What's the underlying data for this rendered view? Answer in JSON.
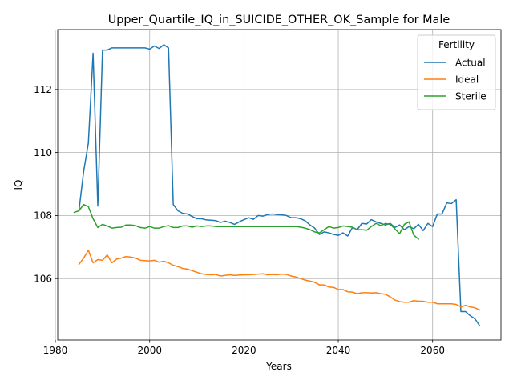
{
  "chart_data": {
    "type": "line",
    "title": "Upper_Quartile_IQ_in_SUICIDE_OTHER_OK_Sample for Male",
    "xlabel": "Years",
    "ylabel": "IQ",
    "xlim": [
      1980.5,
      2074.5
    ],
    "ylim": [
      104.05,
      113.9
    ],
    "xticks": [
      1980,
      2000,
      2020,
      2040,
      2060
    ],
    "yticks": [
      106,
      108,
      110,
      112
    ],
    "grid": true,
    "legend": {
      "title": "Fertility",
      "placement": "top-right"
    },
    "series": [
      {
        "name": "Actual",
        "color": "#1f77b4",
        "x": [
          1985,
          1986,
          1987,
          1988,
          1989,
          1990,
          1991,
          1992,
          1993,
          1994,
          1995,
          1996,
          1997,
          1998,
          1999,
          2000,
          2001,
          2002,
          2003,
          2004,
          2005,
          2006,
          2007,
          2008,
          2009,
          2010,
          2011,
          2012,
          2013,
          2014,
          2015,
          2016,
          2017,
          2018,
          2019,
          2020,
          2021,
          2022,
          2023,
          2024,
          2025,
          2026,
          2027,
          2028,
          2029,
          2030,
          2031,
          2032,
          2033,
          2034,
          2035,
          2036,
          2037,
          2038,
          2039,
          2040,
          2041,
          2042,
          2043,
          2044,
          2045,
          2046,
          2047,
          2048,
          2049,
          2050,
          2051,
          2052,
          2053,
          2054,
          2055,
          2056,
          2057,
          2058,
          2059,
          2060,
          2061,
          2062,
          2063,
          2064,
          2065,
          2066,
          2067,
          2068,
          2069,
          2070
        ],
        "y": [
          108.15,
          109.4,
          110.3,
          113.15,
          108.3,
          113.25,
          113.25,
          113.32,
          113.32,
          113.32,
          113.32,
          113.32,
          113.32,
          113.32,
          113.32,
          113.28,
          113.38,
          113.3,
          113.42,
          113.32,
          108.35,
          108.15,
          108.07,
          108.05,
          107.97,
          107.9,
          107.9,
          107.86,
          107.85,
          107.84,
          107.78,
          107.82,
          107.78,
          107.72,
          107.8,
          107.87,
          107.93,
          107.88,
          108.0,
          107.98,
          108.03,
          108.05,
          108.03,
          108.02,
          108.0,
          107.93,
          107.93,
          107.9,
          107.83,
          107.7,
          107.6,
          107.4,
          107.48,
          107.45,
          107.4,
          107.37,
          107.45,
          107.35,
          107.62,
          107.55,
          107.75,
          107.73,
          107.87,
          107.8,
          107.75,
          107.7,
          107.75,
          107.62,
          107.7,
          107.55,
          107.65,
          107.58,
          107.72,
          107.52,
          107.75,
          107.65,
          108.05,
          108.05,
          108.4,
          108.38,
          108.5,
          104.95,
          104.95,
          104.82,
          104.72,
          104.5
        ]
      },
      {
        "name": "Ideal",
        "color": "#ff7f0e",
        "x": [
          1985,
          1986,
          1987,
          1988,
          1989,
          1990,
          1991,
          1992,
          1993,
          1994,
          1995,
          1996,
          1997,
          1998,
          1999,
          2000,
          2001,
          2002,
          2003,
          2004,
          2005,
          2006,
          2007,
          2008,
          2009,
          2010,
          2011,
          2012,
          2013,
          2014,
          2015,
          2016,
          2017,
          2018,
          2019,
          2020,
          2021,
          2022,
          2023,
          2024,
          2025,
          2026,
          2027,
          2028,
          2029,
          2030,
          2031,
          2032,
          2033,
          2034,
          2035,
          2036,
          2037,
          2038,
          2039,
          2040,
          2041,
          2042,
          2043,
          2044,
          2045,
          2046,
          2047,
          2048,
          2049,
          2050,
          2051,
          2052,
          2053,
          2054,
          2055,
          2056,
          2057,
          2058,
          2059,
          2060,
          2061,
          2062,
          2063,
          2064,
          2065,
          2066,
          2067,
          2068,
          2069,
          2070
        ],
        "y": [
          106.45,
          106.65,
          106.9,
          106.5,
          106.6,
          106.58,
          106.75,
          106.5,
          106.62,
          106.65,
          106.7,
          106.68,
          106.65,
          106.58,
          106.57,
          106.56,
          106.58,
          106.52,
          106.55,
          106.5,
          106.42,
          106.38,
          106.32,
          106.3,
          106.25,
          106.2,
          106.15,
          106.13,
          106.12,
          106.13,
          106.08,
          106.1,
          106.12,
          106.1,
          106.11,
          106.12,
          106.12,
          106.13,
          106.14,
          106.15,
          106.12,
          106.13,
          106.12,
          106.14,
          106.13,
          106.08,
          106.05,
          106.0,
          105.95,
          105.92,
          105.88,
          105.8,
          105.8,
          105.73,
          105.72,
          105.65,
          105.65,
          105.58,
          105.57,
          105.52,
          105.55,
          105.55,
          105.54,
          105.55,
          105.52,
          105.5,
          105.42,
          105.32,
          105.27,
          105.25,
          105.25,
          105.3,
          105.28,
          105.28,
          105.25,
          105.25,
          105.2,
          105.2,
          105.2,
          105.2,
          105.18,
          105.1,
          105.15,
          105.1,
          105.07,
          105.0
        ]
      },
      {
        "name": "Sterile",
        "color": "#2ca02c",
        "x": [
          1984,
          1985,
          1986,
          1987,
          1988,
          1989,
          1990,
          1991,
          1992,
          1993,
          1994,
          1995,
          1996,
          1997,
          1998,
          1999,
          2000,
          2001,
          2002,
          2003,
          2004,
          2005,
          2006,
          2007,
          2008,
          2009,
          2010,
          2011,
          2012,
          2013,
          2014,
          2015,
          2016,
          2017,
          2018,
          2019,
          2020,
          2021,
          2022,
          2023,
          2024,
          2025,
          2026,
          2027,
          2028,
          2029,
          2030,
          2031,
          2032,
          2033,
          2034,
          2035,
          2036,
          2037,
          2038,
          2039,
          2040,
          2041,
          2042,
          2043,
          2044,
          2045,
          2046,
          2047,
          2048,
          2049,
          2050,
          2051,
          2052,
          2053,
          2054,
          2055,
          2056,
          2057
        ],
        "y": [
          108.1,
          108.15,
          108.35,
          108.28,
          107.9,
          107.62,
          107.72,
          107.67,
          107.6,
          107.62,
          107.63,
          107.7,
          107.7,
          107.68,
          107.62,
          107.6,
          107.65,
          107.6,
          107.6,
          107.65,
          107.68,
          107.62,
          107.62,
          107.67,
          107.67,
          107.63,
          107.67,
          107.65,
          107.67,
          107.67,
          107.65,
          107.65,
          107.65,
          107.65,
          107.65,
          107.65,
          107.65,
          107.65,
          107.65,
          107.65,
          107.65,
          107.65,
          107.65,
          107.65,
          107.65,
          107.65,
          107.65,
          107.65,
          107.63,
          107.6,
          107.55,
          107.48,
          107.45,
          107.55,
          107.65,
          107.6,
          107.62,
          107.67,
          107.65,
          107.63,
          107.55,
          107.55,
          107.53,
          107.65,
          107.75,
          107.68,
          107.75,
          107.72,
          107.58,
          107.42,
          107.72,
          107.8,
          107.38,
          107.25
        ]
      }
    ]
  }
}
